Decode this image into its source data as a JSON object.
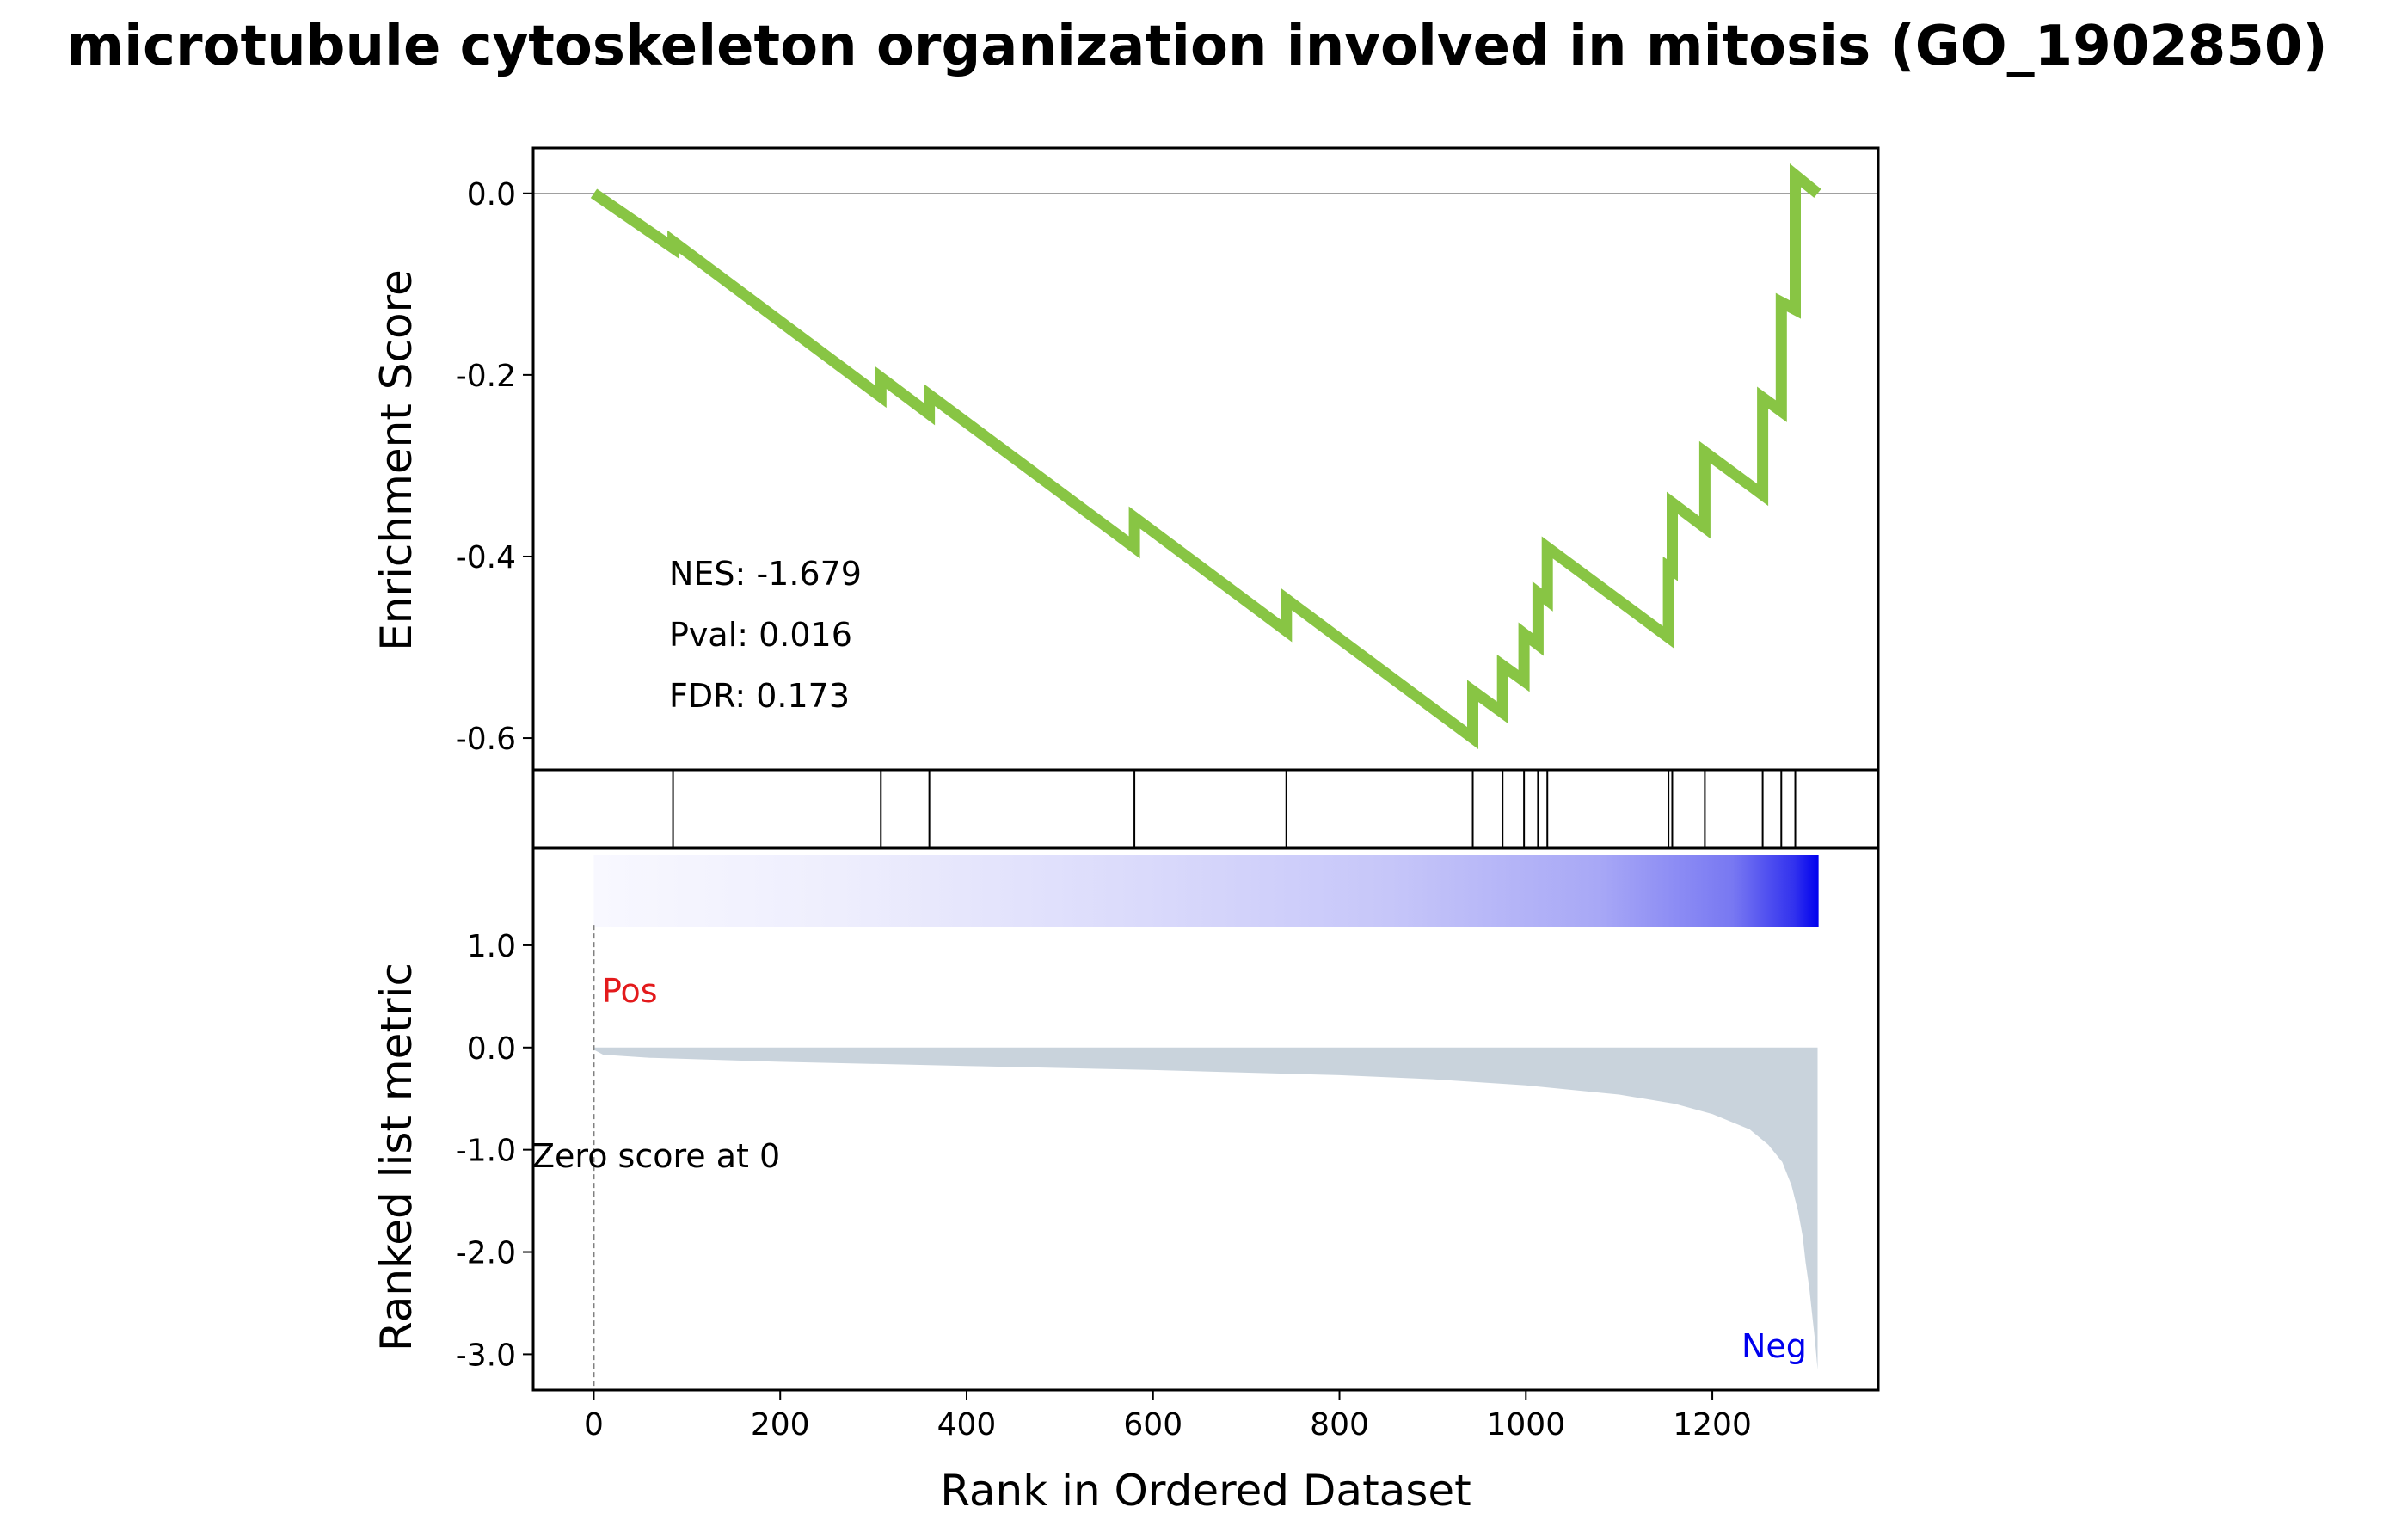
{
  "title": "microtubule cytoskeleton organization involved in mitosis (GO_1902850)",
  "chart_data": {
    "type": "line",
    "title": "microtubule cytoskeleton organization involved in mitosis (GO_1902850)",
    "xlabel": "Rank in Ordered Dataset",
    "xlim": [
      -65,
      1378
    ],
    "x_ticks": [
      "0",
      "200",
      "400",
      "600",
      "800",
      "1000",
      "1200"
    ],
    "x_tick_values": [
      0,
      200,
      400,
      600,
      800,
      1000,
      1200
    ],
    "n_genes": 1314,
    "colors": {
      "es_line": "#88c544",
      "metric_fill": "#c9d3dc",
      "pos": "#e31a1c",
      "neg": "#0000ee",
      "zero_line": "#808080"
    },
    "es_panel": {
      "ylabel": "Enrichment Score",
      "ylim": [
        -0.635,
        0.05
      ],
      "y_ticks": [
        "0.0",
        "-0.2",
        "-0.4",
        "-0.6"
      ],
      "y_tick_values": [
        0.0,
        -0.2,
        -0.4,
        -0.6
      ],
      "series": [
        {
          "x": [
            0,
            85,
            85,
            308,
            308,
            360,
            360,
            580,
            580,
            743,
            743,
            943,
            943,
            975,
            975,
            998,
            998,
            1013,
            1013,
            1023,
            1023,
            1153,
            1153,
            1157,
            1157,
            1192,
            1192,
            1254,
            1254,
            1274,
            1274,
            1289,
            1289,
            1313
          ],
          "y": [
            0.0,
            -0.06,
            -0.053,
            -0.224,
            -0.203,
            -0.243,
            -0.222,
            -0.39,
            -0.357,
            -0.482,
            -0.447,
            -0.6,
            -0.548,
            -0.572,
            -0.52,
            -0.537,
            -0.485,
            -0.497,
            -0.44,
            -0.448,
            -0.39,
            -0.489,
            -0.412,
            -0.415,
            -0.341,
            -0.368,
            -0.285,
            -0.332,
            -0.225,
            -0.24,
            -0.12,
            -0.128,
            0.02,
            0.0
          ]
        }
      ],
      "annotations": [
        "NES: -1.679",
        "Pval: 0.016",
        "FDR: 0.173"
      ]
    },
    "hits": [
      85,
      308,
      360,
      580,
      743,
      943,
      975,
      998,
      1013,
      1023,
      1153,
      1157,
      1192,
      1254,
      1274,
      1289
    ],
    "heatmap_bar": {
      "colormap": "bwr",
      "from_color": "#f8f8ff",
      "to_color": "#0000ee"
    },
    "metric_panel": {
      "ylabel": "Ranked list metric",
      "ylim": [
        -3.35,
        1.95
      ],
      "y_ticks": [
        "1.0",
        "0.0",
        "-1.0",
        "-2.0",
        "-3.0"
      ],
      "y_tick_values": [
        1.0,
        0.0,
        -1.0,
        -2.0,
        -3.0
      ],
      "fill_profile": {
        "x": [
          0,
          10,
          60,
          200,
          400,
          600,
          800,
          900,
          1000,
          1100,
          1160,
          1200,
          1240,
          1260,
          1275,
          1285,
          1292,
          1297,
          1300,
          1304,
          1307,
          1310,
          1313
        ],
        "y": [
          -0.02,
          -0.07,
          -0.1,
          -0.14,
          -0.18,
          -0.22,
          -0.27,
          -0.31,
          -0.37,
          -0.46,
          -0.55,
          -0.65,
          -0.8,
          -0.95,
          -1.12,
          -1.35,
          -1.6,
          -1.85,
          -2.1,
          -2.35,
          -2.6,
          -2.85,
          -3.15
        ]
      },
      "pos_label": "Pos",
      "neg_label": "Neg",
      "zero_label": "Zero score at 0"
    }
  }
}
